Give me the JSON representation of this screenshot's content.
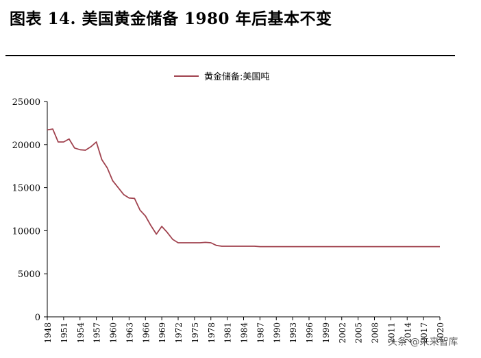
{
  "title": "图表 14. 美国黄金储备 1980 年后基本不变",
  "watermark": "头条 @未来智库",
  "colors": {
    "series": "#a0424e",
    "axis": "#000000",
    "text": "#000000"
  },
  "chart_data": {
    "type": "line",
    "ylim": [
      0,
      25000
    ],
    "yticks": [
      0,
      5000,
      10000,
      15000,
      20000,
      25000
    ],
    "legend": "top-center",
    "grid": false,
    "xlabels": [
      "1948",
      "1951",
      "1954",
      "1957",
      "1960",
      "1963",
      "1966",
      "1969",
      "1972",
      "1975",
      "1978",
      "1981",
      "1984",
      "1987",
      "1990",
      "1993",
      "1996",
      "1999",
      "2002",
      "2005",
      "2008",
      "2011",
      "2014",
      "2017",
      "2020"
    ],
    "x": [
      1948,
      1949,
      1950,
      1951,
      1952,
      1953,
      1954,
      1955,
      1956,
      1957,
      1958,
      1959,
      1960,
      1961,
      1962,
      1963,
      1964,
      1965,
      1966,
      1967,
      1968,
      1969,
      1970,
      1971,
      1972,
      1973,
      1974,
      1975,
      1976,
      1977,
      1978,
      1979,
      1980,
      1981,
      1982,
      1983,
      1984,
      1985,
      1986,
      1987,
      1988,
      1989,
      1990,
      1991,
      1992,
      1993,
      1994,
      1995,
      1996,
      1997,
      1998,
      1999,
      2000,
      2001,
      2002,
      2003,
      2004,
      2005,
      2006,
      2007,
      2008,
      2009,
      2010,
      2011,
      2012,
      2013,
      2014,
      2015,
      2016,
      2017,
      2018,
      2019,
      2020
    ],
    "series": [
      {
        "name": "黄金储备:美国吨",
        "values": [
          21700,
          21800,
          20300,
          20300,
          20650,
          19600,
          19400,
          19350,
          19750,
          20300,
          18250,
          17300,
          15800,
          15000,
          14200,
          13800,
          13750,
          12400,
          11700,
          10600,
          9600,
          10500,
          9800,
          9000,
          8600,
          8600,
          8600,
          8600,
          8600,
          8650,
          8600,
          8300,
          8200,
          8200,
          8200,
          8200,
          8200,
          8200,
          8200,
          8150,
          8150,
          8150,
          8150,
          8150,
          8150,
          8150,
          8150,
          8150,
          8150,
          8150,
          8150,
          8150,
          8150,
          8150,
          8150,
          8150,
          8150,
          8150,
          8150,
          8150,
          8150,
          8150,
          8150,
          8150,
          8150,
          8150,
          8150,
          8150,
          8150,
          8150,
          8150,
          8150,
          8150
        ]
      }
    ]
  }
}
